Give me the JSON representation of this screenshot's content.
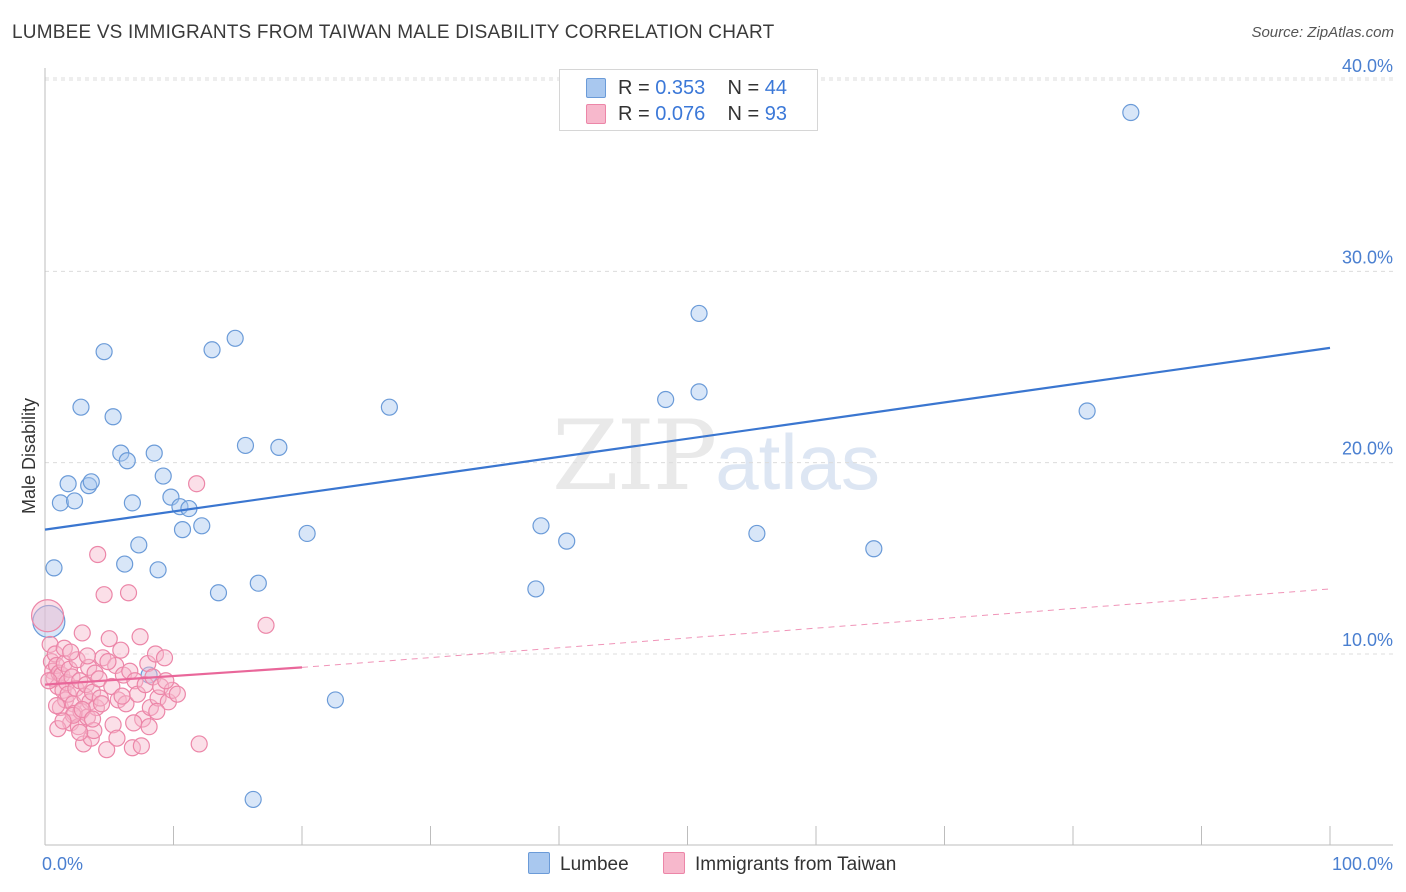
{
  "title": "LUMBEE VS IMMIGRANTS FROM TAIWAN MALE DISABILITY CORRELATION CHART",
  "source": "Source: ZipAtlas.com",
  "watermark": {
    "zip": "ZIP",
    "atlas": "atlas"
  },
  "legend": {
    "rows": [
      {
        "r_label": "R =",
        "r_value": "0.353",
        "n_label": "N =",
        "n_value": "44",
        "color": "#a9c8ef"
      },
      {
        "r_label": "R =",
        "r_value": "0.076",
        "n_label": "N =",
        "n_value": "93",
        "color": "#f7b8cc"
      }
    ]
  },
  "bottom_legend": [
    {
      "label": "Lumbee",
      "color": "#a9c8ef"
    },
    {
      "label": "Immigrants from Taiwan",
      "color": "#f7b8cc"
    }
  ],
  "chart_data": {
    "type": "scatter",
    "title": "LUMBEE VS IMMIGRANTS FROM TAIWAN MALE DISABILITY CORRELATION CHART",
    "xlabel": "",
    "ylabel": "Male Disability",
    "xlim": [
      0,
      100
    ],
    "ylim": [
      0,
      40
    ],
    "x_tick_labels": [
      {
        "value": 0,
        "label": "0.0%"
      },
      {
        "value": 100,
        "label": "100.0%"
      }
    ],
    "y_tick_labels": [
      {
        "value": 10,
        "label": "10.0%"
      },
      {
        "value": 20,
        "label": "20.0%"
      },
      {
        "value": 30,
        "label": "30.0%"
      },
      {
        "value": 40,
        "label": "40.0%"
      }
    ],
    "grid": true,
    "series": [
      {
        "name": "Lumbee",
        "color": "#a9c8ef",
        "stroke": "#6b9bd8",
        "trend": {
          "x0": 0,
          "y0": 16.5,
          "x1": 100,
          "y1": 26.0,
          "color": "#3a76d0",
          "dashed_to": null
        },
        "points": [
          [
            0.7,
            14.5
          ],
          [
            1.2,
            17.9
          ],
          [
            1.8,
            18.9
          ],
          [
            2.3,
            18.0
          ],
          [
            2.8,
            22.9
          ],
          [
            3.4,
            18.8
          ],
          [
            3.6,
            19.0
          ],
          [
            4.6,
            25.8
          ],
          [
            5.3,
            22.4
          ],
          [
            5.9,
            20.5
          ],
          [
            6.4,
            20.1
          ],
          [
            6.8,
            17.9
          ],
          [
            7.3,
            15.7
          ],
          [
            8.5,
            20.5
          ],
          [
            8.8,
            14.4
          ],
          [
            9.2,
            19.3
          ],
          [
            9.8,
            18.2
          ],
          [
            10.5,
            17.7
          ],
          [
            10.7,
            16.5
          ],
          [
            11.2,
            17.6
          ],
          [
            12.2,
            16.7
          ],
          [
            13.0,
            25.9
          ],
          [
            13.5,
            13.2
          ],
          [
            14.8,
            26.5
          ],
          [
            15.6,
            20.9
          ],
          [
            16.6,
            13.7
          ],
          [
            18.2,
            20.8
          ],
          [
            20.4,
            16.3
          ],
          [
            22.6,
            7.6
          ],
          [
            26.8,
            22.9
          ],
          [
            38.2,
            13.4
          ],
          [
            38.6,
            16.7
          ],
          [
            40.6,
            15.9
          ],
          [
            48.3,
            23.3
          ],
          [
            50.9,
            23.7
          ],
          [
            50.9,
            27.8
          ],
          [
            55.4,
            16.3
          ],
          [
            64.5,
            15.5
          ],
          [
            81.1,
            22.7
          ],
          [
            84.5,
            38.3
          ],
          [
            16.2,
            2.4
          ],
          [
            0.3,
            11.7
          ],
          [
            8.1,
            8.9
          ],
          [
            6.2,
            14.7
          ]
        ]
      },
      {
        "name": "Immigrants from Taiwan",
        "color": "#f7b8cc",
        "stroke": "#ec86a8",
        "trend": {
          "x0": 0,
          "y0": 8.4,
          "x1": 20,
          "y1": 9.3,
          "color": "#e9679a",
          "dashed_to": {
            "x": 100,
            "y": 13.4
          }
        },
        "points": [
          [
            0.2,
            12.0
          ],
          [
            0.4,
            10.5
          ],
          [
            0.5,
            9.6
          ],
          [
            0.6,
            9.1
          ],
          [
            0.7,
            8.7
          ],
          [
            0.8,
            10.0
          ],
          [
            0.9,
            9.4
          ],
          [
            1.0,
            8.3
          ],
          [
            1.1,
            9.0
          ],
          [
            1.2,
            7.2
          ],
          [
            1.3,
            8.9
          ],
          [
            1.4,
            8.1
          ],
          [
            1.5,
            9.5
          ],
          [
            1.6,
            7.6
          ],
          [
            1.7,
            8.5
          ],
          [
            1.8,
            7.9
          ],
          [
            1.9,
            9.2
          ],
          [
            2.0,
            6.4
          ],
          [
            2.1,
            8.8
          ],
          [
            2.2,
            7.4
          ],
          [
            2.3,
            6.9
          ],
          [
            2.4,
            8.2
          ],
          [
            2.5,
            9.7
          ],
          [
            2.6,
            6.2
          ],
          [
            2.7,
            8.6
          ],
          [
            2.8,
            7.0
          ],
          [
            2.9,
            11.1
          ],
          [
            3.0,
            5.3
          ],
          [
            3.1,
            7.8
          ],
          [
            3.2,
            8.4
          ],
          [
            3.3,
            6.7
          ],
          [
            3.4,
            9.3
          ],
          [
            3.5,
            7.5
          ],
          [
            3.6,
            5.6
          ],
          [
            3.7,
            8.0
          ],
          [
            3.8,
            6.0
          ],
          [
            3.9,
            9.0
          ],
          [
            4.0,
            7.2
          ],
          [
            4.1,
            15.2
          ],
          [
            4.2,
            8.7
          ],
          [
            4.3,
            7.7
          ],
          [
            4.5,
            9.8
          ],
          [
            4.6,
            13.1
          ],
          [
            4.8,
            5.0
          ],
          [
            5.0,
            10.8
          ],
          [
            5.2,
            8.3
          ],
          [
            5.3,
            6.3
          ],
          [
            5.5,
            9.4
          ],
          [
            5.7,
            7.6
          ],
          [
            5.9,
            10.2
          ],
          [
            6.1,
            8.9
          ],
          [
            6.3,
            7.4
          ],
          [
            6.5,
            13.2
          ],
          [
            6.6,
            9.1
          ],
          [
            6.8,
            5.1
          ],
          [
            7.0,
            8.6
          ],
          [
            7.2,
            7.9
          ],
          [
            7.4,
            10.9
          ],
          [
            7.6,
            6.6
          ],
          [
            7.8,
            8.4
          ],
          [
            8.0,
            9.5
          ],
          [
            8.2,
            7.2
          ],
          [
            8.4,
            8.8
          ],
          [
            8.6,
            10.0
          ],
          [
            8.8,
            7.7
          ],
          [
            9.0,
            8.3
          ],
          [
            9.3,
            9.8
          ],
          [
            9.6,
            7.5
          ],
          [
            9.9,
            8.1
          ],
          [
            12.0,
            5.3
          ],
          [
            11.8,
            18.9
          ],
          [
            17.2,
            11.5
          ],
          [
            1.0,
            6.1
          ],
          [
            1.5,
            10.3
          ],
          [
            2.2,
            6.8
          ],
          [
            2.7,
            5.9
          ],
          [
            3.3,
            9.9
          ],
          [
            4.4,
            7.4
          ],
          [
            5.6,
            5.6
          ],
          [
            6.9,
            6.4
          ],
          [
            7.5,
            5.2
          ],
          [
            8.7,
            7.0
          ],
          [
            9.4,
            8.6
          ],
          [
            10.3,
            7.9
          ],
          [
            0.3,
            8.6
          ],
          [
            0.9,
            7.3
          ],
          [
            1.4,
            6.5
          ],
          [
            2.0,
            10.1
          ],
          [
            2.9,
            7.1
          ],
          [
            3.7,
            6.6
          ],
          [
            4.9,
            9.6
          ],
          [
            6.0,
            7.8
          ],
          [
            8.1,
            6.2
          ]
        ]
      }
    ]
  }
}
